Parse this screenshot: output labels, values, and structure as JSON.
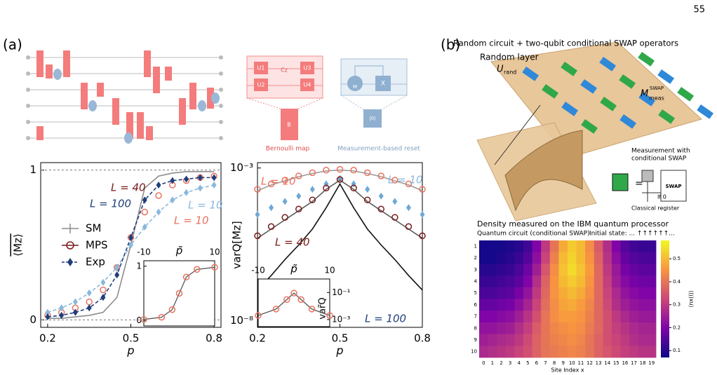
{
  "page_number": "55",
  "panel_labels": [
    "(a)",
    "(b)"
  ],
  "circuit": {
    "gate_labels": [
      "U1",
      "U2",
      "Cz",
      "U3",
      "U4"
    ],
    "bernoulli_box": "B",
    "bernoulli_caption": "Bernoulli map",
    "measure_label": "M",
    "x_gate": "X",
    "reset_state": "|0⟩",
    "reset_caption": "Measurement-based reset"
  },
  "illustration": {
    "title": "Random circuit + two-qubit conditional SWAP operators",
    "layer_label": "Random layer",
    "u_main": "U",
    "u_sub": "rand",
    "m_main": "M",
    "m_sub": "meas",
    "m_sup": "SWAP",
    "measurement_lines": [
      "Measurement with",
      "conditional SWAP"
    ],
    "swap_box": "SWAP",
    "condition": "If 0",
    "register": "Classical register"
  },
  "chart_data": [
    {
      "type": "line",
      "xlabel": "p",
      "ylabel": "⟨Mz⟩",
      "xlim": [
        0.175,
        0.825
      ],
      "ylim": [
        -0.05,
        1.05
      ],
      "xticks": [
        0.2,
        0.5,
        0.8
      ],
      "yticks": [
        0,
        1
      ],
      "grid": true,
      "x": [
        0.2,
        0.25,
        0.3,
        0.35,
        0.4,
        0.45,
        0.5,
        0.55,
        0.6,
        0.65,
        0.7,
        0.75,
        0.8
      ],
      "series": [
        {
          "color": "#8c8c8c",
          "marker": "none",
          "line": "solid",
          "values": [
            0.01,
            0.01,
            0.02,
            0.03,
            0.05,
            0.15,
            0.5,
            0.88,
            0.96,
            0.98,
            0.99,
            0.99,
            0.99
          ]
        },
        {
          "color": "#e8735f",
          "marker": "circle",
          "line": "none",
          "values": [
            0.03,
            0.05,
            0.08,
            0.12,
            0.2,
            0.35,
            0.55,
            0.72,
            0.83,
            0.9,
            0.93,
            0.95,
            0.96
          ]
        },
        {
          "color": "#8ab8dc",
          "marker": "diamond",
          "line": "dashed",
          "values": [
            0.05,
            0.08,
            0.12,
            0.18,
            0.25,
            0.35,
            0.5,
            0.62,
            0.72,
            0.8,
            0.85,
            0.88,
            0.9
          ]
        },
        {
          "color": "#1f3f7a",
          "marker": "diamond",
          "line": "dashed",
          "values": [
            0.02,
            0.03,
            0.05,
            0.08,
            0.15,
            0.3,
            0.55,
            0.8,
            0.9,
            0.93,
            0.94,
            0.95,
            0.95
          ]
        }
      ],
      "legend": [
        {
          "name": "SM",
          "color": "#8c8c8c",
          "marker": "plus"
        },
        {
          "name": "MPS",
          "color": "#7a1a1a",
          "marker": "circle"
        },
        {
          "name": "Exp",
          "color": "#1f3f7a",
          "marker": "diamond"
        }
      ],
      "annotations": [
        {
          "text": "L = 40",
          "color": "#7a1a1a"
        },
        {
          "text": "L = 100",
          "color": "#1f3f7a"
        },
        {
          "text": "L = 10",
          "color": "#8ab8dc"
        },
        {
          "text": "L = 10",
          "color": "#e8735f"
        }
      ],
      "inset": {
        "xlabel": "p̃",
        "xlim": [
          -10,
          10
        ],
        "ylim": [
          -0.1,
          1.1
        ],
        "xticks": [
          -10,
          10
        ],
        "yticks": [
          0,
          1
        ],
        "x": [
          -10,
          -5,
          -2,
          0,
          2,
          5,
          10
        ],
        "values": [
          0.02,
          0.06,
          0.2,
          0.5,
          0.8,
          0.94,
          0.98
        ],
        "color": "#e8735f"
      }
    },
    {
      "type": "line",
      "xlabel": "p",
      "ylabel": "varQ[Mz]",
      "log": true,
      "xlim": [
        0.2,
        0.8
      ],
      "ylim": [
        6e-09,
        0.0015
      ],
      "xticks": [
        0.2,
        0.5,
        0.8
      ],
      "yticks": [
        {
          "value": 0.001,
          "label": "10⁻³"
        },
        {
          "value": 1e-08,
          "label": "10⁻⁸"
        }
      ],
      "grid": false,
      "x": [
        0.2,
        0.25,
        0.3,
        0.35,
        0.4,
        0.45,
        0.5,
        0.55,
        0.6,
        0.65,
        0.7,
        0.75,
        0.8
      ],
      "series": [
        {
          "color": "#9a9a9a",
          "marker": "none",
          "line": "solid",
          "values": [
            0.00018,
            0.00028,
            0.00038,
            0.00052,
            0.00066,
            0.0008,
            0.00086,
            0.0008,
            0.00066,
            0.00052,
            0.00038,
            0.00028,
            0.00018
          ]
        },
        {
          "color": "#e8735f",
          "marker": "circle",
          "line": "none",
          "values": [
            0.0002,
            0.0003,
            0.0004,
            0.00055,
            0.0007,
            0.00085,
            0.0009,
            0.00085,
            0.0007,
            0.00055,
            0.0004,
            0.0003,
            0.0002
          ]
        },
        {
          "color": "#6fa8d6",
          "marker": "diamond",
          "line": "none",
          "values": [
            3e-05,
            5e-05,
            8e-05,
            0.00012,
            0.0002,
            0.0003,
            0.00045,
            0.0003,
            0.0002,
            0.00012,
            8e-05,
            5e-05,
            3e-05
          ]
        },
        {
          "color": "#5a5a5a",
          "marker": "none",
          "line": "solid",
          "values": [
            5e-06,
            1e-05,
            2e-05,
            4e-05,
            8e-05,
            0.0002,
            0.0004,
            0.0002,
            8e-05,
            4e-05,
            2e-05,
            1e-05,
            5e-06
          ]
        },
        {
          "color": "#7a1a1a",
          "marker": "circle",
          "line": "none",
          "values": [
            6e-06,
            1.2e-05,
            2.4e-05,
            4.5e-05,
            9e-05,
            0.00022,
            0.00042,
            0.00022,
            9e-05,
            4.5e-05,
            2.4e-05,
            1.2e-05,
            6e-06
          ]
        },
        {
          "color": "#111111",
          "marker": "none",
          "line": "solid",
          "values": [
            1e-07,
            3e-07,
            1e-06,
            3e-06,
            1e-05,
            5e-05,
            0.0003,
            5e-05,
            1e-05,
            3e-06,
            1e-06,
            3e-07,
            1e-07
          ]
        }
      ],
      "annotations": [
        {
          "text": "L = 10",
          "color": "#e8735f"
        },
        {
          "text": "L = 10",
          "color": "#8ab8dc"
        },
        {
          "text": "L = 40",
          "color": "#7a1a1a"
        },
        {
          "text": "L = 100",
          "color": "#1f3f7a"
        }
      ],
      "inset": {
        "xlabel": "p̃",
        "ylabel": "var̃Q",
        "log": true,
        "xlim": [
          -10,
          10
        ],
        "ylim": [
          0.0003,
          1
        ],
        "xticks": [
          -10,
          10
        ],
        "yticks": [
          {
            "value": 0.1,
            "label": "10⁻¹"
          },
          {
            "value": 0.001,
            "label": "10⁻³"
          }
        ],
        "x": [
          -10,
          -5,
          -2,
          0,
          2,
          5,
          10
        ],
        "values": [
          0.002,
          0.006,
          0.03,
          0.09,
          0.03,
          0.006,
          0.002
        ],
        "color": "#e8735f"
      }
    },
    {
      "type": "heatmap",
      "title": "Density measured on the IBM quantum processor",
      "subtitle": "Quantum circuit (conditional SWAP)",
      "annotation": "Initial state: ... ↑↑↑↑↑↑...",
      "xlabel": "Site Index x",
      "xticks": [
        0,
        1,
        2,
        3,
        4,
        5,
        6,
        7,
        8,
        9,
        10,
        11,
        12,
        13,
        14,
        15,
        16,
        17,
        18,
        19
      ],
      "yticks": [
        1,
        2,
        3,
        4,
        5,
        6,
        7,
        8,
        9,
        10
      ],
      "colormap": "plasma",
      "clim": [
        0.07,
        0.58
      ],
      "cticks": [
        0.1,
        0.2,
        0.3,
        0.4,
        0.5
      ],
      "clabel": "⟨nx(i)⟩",
      "values": [
        [
          0.08,
          0.08,
          0.08,
          0.09,
          0.1,
          0.13,
          0.2,
          0.3,
          0.4,
          0.48,
          0.52,
          0.5,
          0.44,
          0.36,
          0.28,
          0.2,
          0.15,
          0.13,
          0.12,
          0.12
        ],
        [
          0.08,
          0.08,
          0.09,
          0.1,
          0.12,
          0.15,
          0.22,
          0.32,
          0.42,
          0.5,
          0.53,
          0.5,
          0.45,
          0.37,
          0.29,
          0.22,
          0.17,
          0.15,
          0.14,
          0.14
        ],
        [
          0.1,
          0.1,
          0.11,
          0.12,
          0.14,
          0.18,
          0.25,
          0.35,
          0.44,
          0.51,
          0.54,
          0.51,
          0.46,
          0.38,
          0.3,
          0.24,
          0.19,
          0.17,
          0.16,
          0.16
        ],
        [
          0.12,
          0.12,
          0.13,
          0.14,
          0.16,
          0.2,
          0.28,
          0.37,
          0.45,
          0.5,
          0.52,
          0.5,
          0.45,
          0.38,
          0.31,
          0.25,
          0.21,
          0.19,
          0.18,
          0.18
        ],
        [
          0.14,
          0.14,
          0.15,
          0.16,
          0.19,
          0.23,
          0.3,
          0.38,
          0.45,
          0.48,
          0.5,
          0.48,
          0.44,
          0.38,
          0.32,
          0.27,
          0.23,
          0.21,
          0.2,
          0.2
        ],
        [
          0.17,
          0.17,
          0.18,
          0.19,
          0.22,
          0.26,
          0.32,
          0.39,
          0.44,
          0.47,
          0.48,
          0.46,
          0.43,
          0.38,
          0.33,
          0.28,
          0.25,
          0.23,
          0.22,
          0.22
        ],
        [
          0.2,
          0.2,
          0.21,
          0.22,
          0.25,
          0.29,
          0.34,
          0.4,
          0.44,
          0.46,
          0.46,
          0.45,
          0.42,
          0.38,
          0.34,
          0.3,
          0.27,
          0.25,
          0.24,
          0.24
        ],
        [
          0.23,
          0.23,
          0.24,
          0.25,
          0.28,
          0.31,
          0.36,
          0.4,
          0.43,
          0.44,
          0.45,
          0.44,
          0.41,
          0.38,
          0.34,
          0.31,
          0.29,
          0.27,
          0.26,
          0.26
        ],
        [
          0.25,
          0.26,
          0.27,
          0.28,
          0.3,
          0.33,
          0.37,
          0.4,
          0.42,
          0.43,
          0.44,
          0.43,
          0.4,
          0.37,
          0.34,
          0.32,
          0.3,
          0.28,
          0.27,
          0.27
        ],
        [
          0.27,
          0.28,
          0.29,
          0.3,
          0.32,
          0.34,
          0.37,
          0.4,
          0.41,
          0.42,
          0.43,
          0.42,
          0.4,
          0.37,
          0.35,
          0.33,
          0.31,
          0.3,
          0.29,
          0.29
        ]
      ]
    }
  ]
}
